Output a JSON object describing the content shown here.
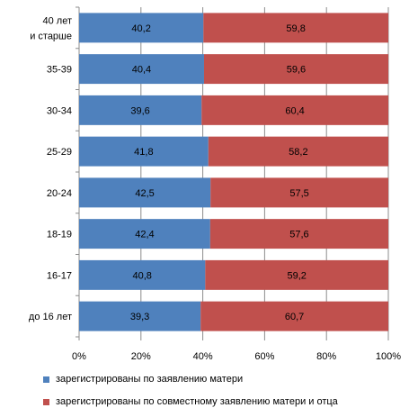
{
  "chart_data": {
    "type": "bar",
    "orientation": "horizontal",
    "stacked": true,
    "percent": true,
    "categories": [
      "40 лет и старше",
      "35-39",
      "30-34",
      "25-29",
      "20-24",
      "18-19",
      "16-17",
      "до 16 лет"
    ],
    "series": [
      {
        "name": "зарегистрированы по заявлению матери",
        "values": [
          40.2,
          40.4,
          39.6,
          41.8,
          42.5,
          42.4,
          40.8,
          39.3
        ],
        "labels": [
          "40,2",
          "40,4",
          "39,6",
          "41,8",
          "42,5",
          "42,4",
          "40,8",
          "39,3"
        ],
        "color": "#4f81bd"
      },
      {
        "name": "зарегистрированы по совместному заявлению матери и отца",
        "values": [
          59.8,
          59.6,
          60.4,
          58.2,
          57.5,
          57.6,
          59.2,
          60.7
        ],
        "labels": [
          "59,8",
          "59,6",
          "60,4",
          "58,2",
          "57,5",
          "57,6",
          "59,2",
          "60,7"
        ],
        "color": "#c0504d"
      }
    ],
    "x_ticks": [
      "0%",
      "20%",
      "40%",
      "60%",
      "80%",
      "100%"
    ],
    "xlim": [
      0,
      100
    ],
    "grid": true,
    "legend": "bottom"
  }
}
